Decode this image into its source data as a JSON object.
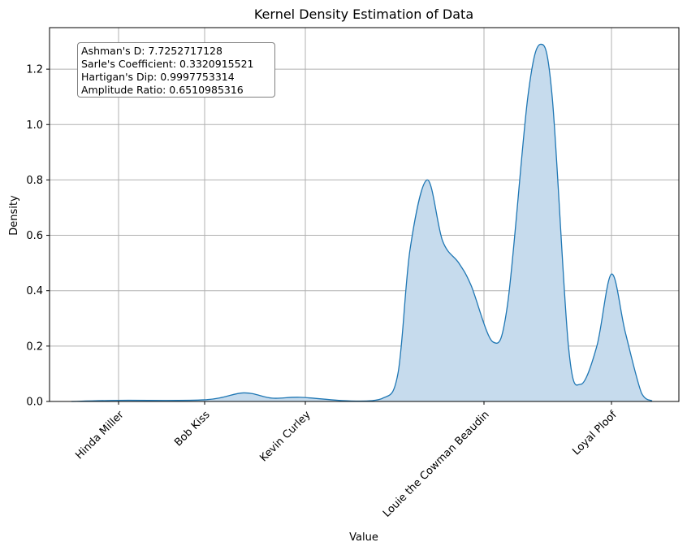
{
  "chart_data": {
    "type": "area",
    "title": "Kernel Density Estimation of Data",
    "xlabel": "Value",
    "ylabel": "Density",
    "ylim": [
      0,
      1.35
    ],
    "yticks": [
      0.0,
      0.2,
      0.4,
      0.6,
      0.8,
      1.0,
      1.2
    ],
    "ytick_labels": [
      "0.0",
      "0.2",
      "0.4",
      "0.6",
      "0.8",
      "1.0",
      "1.2"
    ],
    "grid": true,
    "xtick_labels": [
      "Hinda Miller",
      "Bob Kiss",
      "Kevin Curley",
      "Louie the Cowman Beaudin",
      "Loyal Ploof"
    ],
    "stats": [
      "Ashman's D: 7.7252717128",
      "Sarle's Coefficient: 0.3320915521",
      "Hartigan's Dip: 0.9997753314",
      "Amplitude Ratio: 0.6510985316"
    ],
    "fill_color": "#c6dbed",
    "line_color": "#1f77b4",
    "density_curve": [
      {
        "x": 88,
        "y": 0.0
      },
      {
        "x": 146,
        "y": 0.004
      },
      {
        "x": 252,
        "y": 0.006
      },
      {
        "x": 300,
        "y": 0.031
      },
      {
        "x": 335,
        "y": 0.012
      },
      {
        "x": 370,
        "y": 0.015
      },
      {
        "x": 430,
        "y": 0.002
      },
      {
        "x": 470,
        "y": 0.01
      },
      {
        "x": 490,
        "y": 0.1
      },
      {
        "x": 505,
        "y": 0.55
      },
      {
        "x": 526,
        "y": 0.8
      },
      {
        "x": 545,
        "y": 0.58
      },
      {
        "x": 565,
        "y": 0.5
      },
      {
        "x": 580,
        "y": 0.42
      },
      {
        "x": 607,
        "y": 0.215
      },
      {
        "x": 625,
        "y": 0.35
      },
      {
        "x": 650,
        "y": 1.1
      },
      {
        "x": 666,
        "y": 1.29
      },
      {
        "x": 680,
        "y": 1.1
      },
      {
        "x": 700,
        "y": 0.2
      },
      {
        "x": 715,
        "y": 0.062
      },
      {
        "x": 735,
        "y": 0.2
      },
      {
        "x": 753,
        "y": 0.46
      },
      {
        "x": 770,
        "y": 0.25
      },
      {
        "x": 790,
        "y": 0.03
      },
      {
        "x": 803,
        "y": 0.002
      }
    ]
  }
}
